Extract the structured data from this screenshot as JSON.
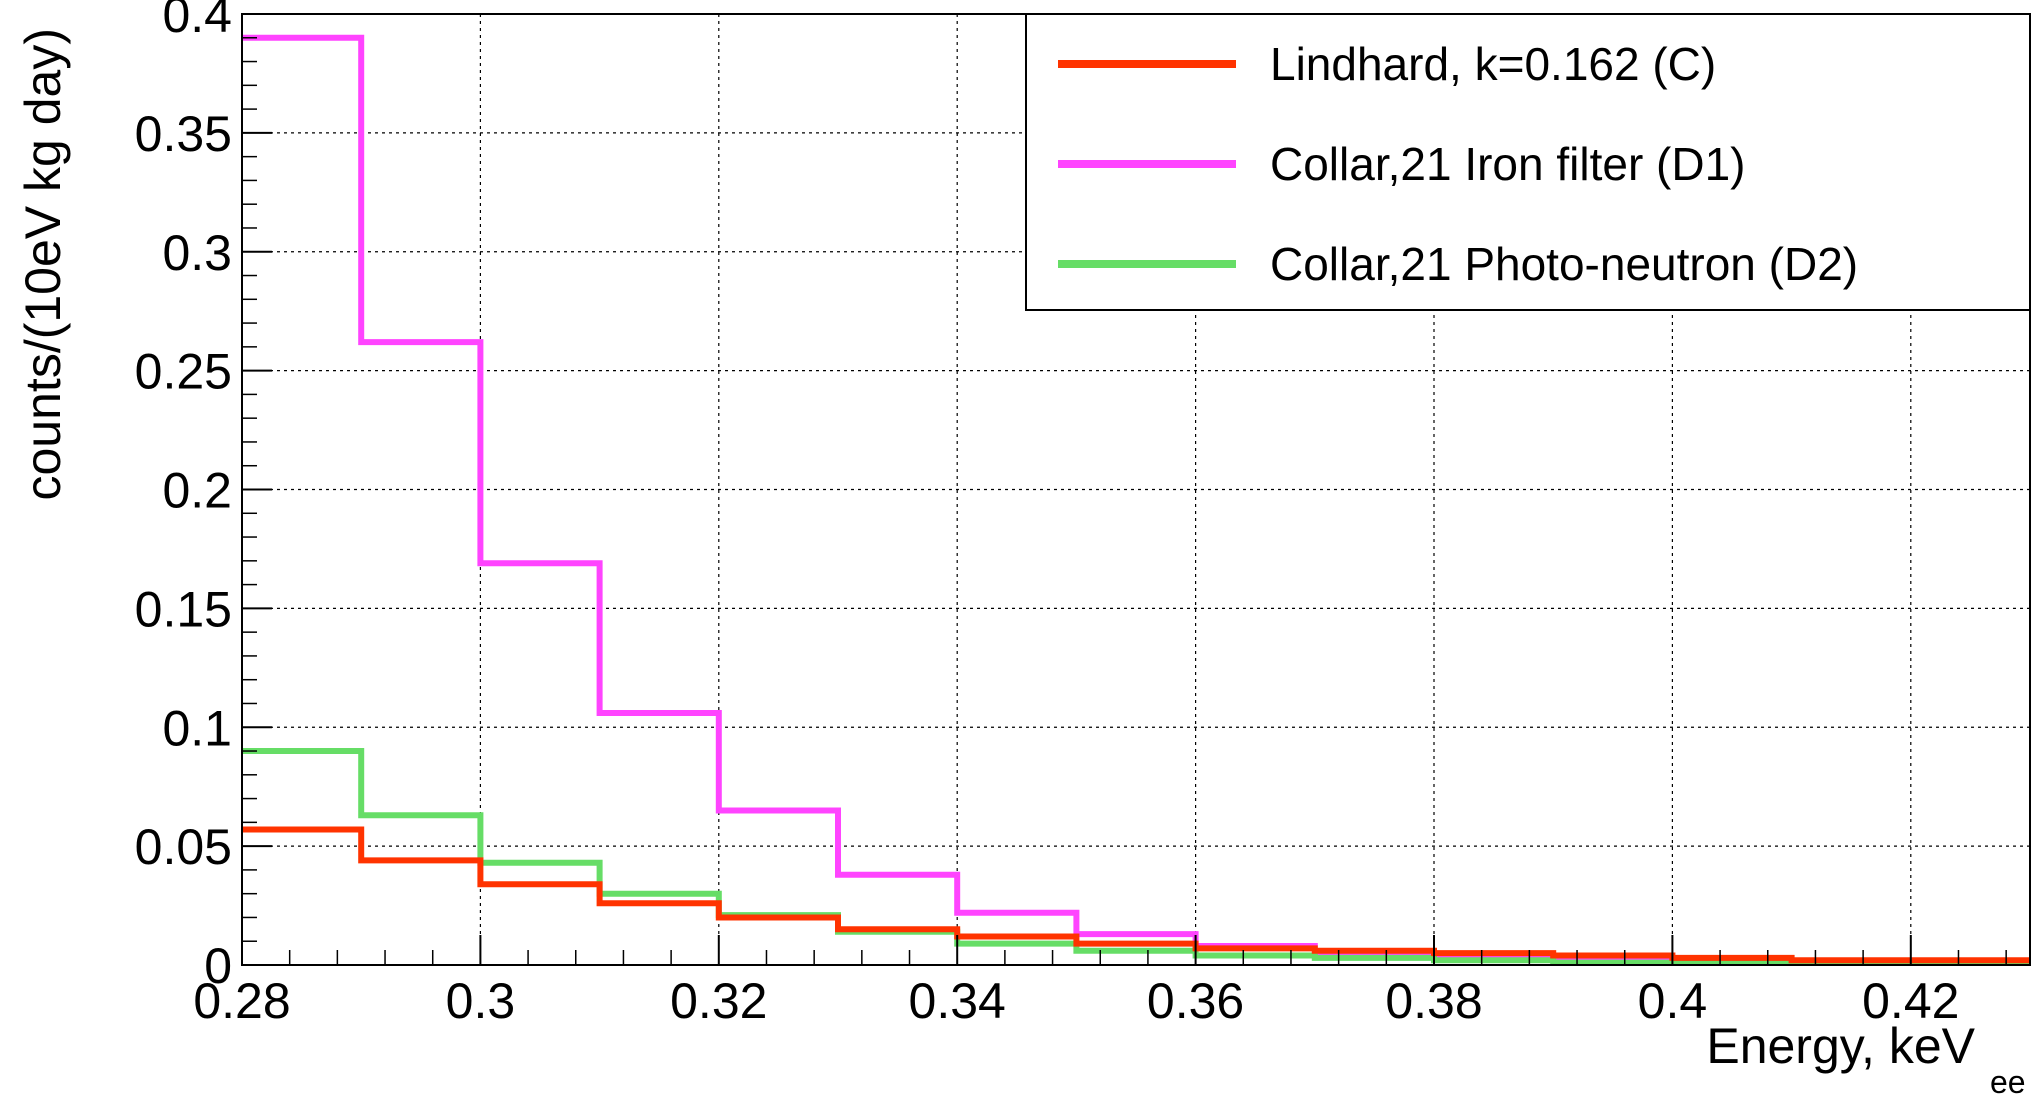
{
  "chart_data": {
    "type": "line",
    "style": "step-histogram",
    "xlabel": "Energy, keV",
    "xlabel_subscript": "ee",
    "ylabel": "counts/(10eV kg day)",
    "xlim": [
      0.28,
      0.43
    ],
    "ylim": [
      0,
      0.4
    ],
    "x_ticks": [
      "0.28",
      "0.3",
      "0.32",
      "0.34",
      "0.36",
      "0.38",
      "0.4",
      "0.42"
    ],
    "y_ticks": [
      "0",
      "0.05",
      "0.1",
      "0.15",
      "0.2",
      "0.25",
      "0.3",
      "0.35",
      "0.4"
    ],
    "grid": true,
    "legend_position": "top-right",
    "bin_edges": [
      0.28,
      0.29,
      0.3,
      0.31,
      0.32,
      0.33,
      0.34,
      0.35,
      0.36,
      0.37,
      0.38,
      0.39,
      0.4,
      0.41,
      0.42,
      0.43
    ],
    "series": [
      {
        "name": "Collar,21 Iron filter (D1)",
        "color": "#ff44ff",
        "values": [
          0.39,
          0.262,
          0.169,
          0.106,
          0.065,
          0.038,
          0.022,
          0.013,
          0.008,
          0.005,
          0.003,
          0.002,
          0.001,
          0.001,
          0.001
        ]
      },
      {
        "name": "Collar,21 Photo-neutron (D2)",
        "color": "#66dd66",
        "values": [
          0.09,
          0.063,
          0.043,
          0.03,
          0.021,
          0.014,
          0.009,
          0.006,
          0.004,
          0.003,
          0.002,
          0.001,
          0.001,
          0.001,
          0.001
        ]
      },
      {
        "name": "Lindhard, k=0.162 (C)",
        "color": "#ff3300",
        "values": [
          0.057,
          0.044,
          0.034,
          0.026,
          0.02,
          0.015,
          0.012,
          0.009,
          0.007,
          0.006,
          0.005,
          0.004,
          0.003,
          0.002,
          0.002
        ]
      }
    ],
    "legend_order": [
      "Lindhard, k=0.162 (C)",
      "Collar,21 Iron filter (D1)",
      "Collar,21 Photo-neutron (D2)"
    ]
  }
}
